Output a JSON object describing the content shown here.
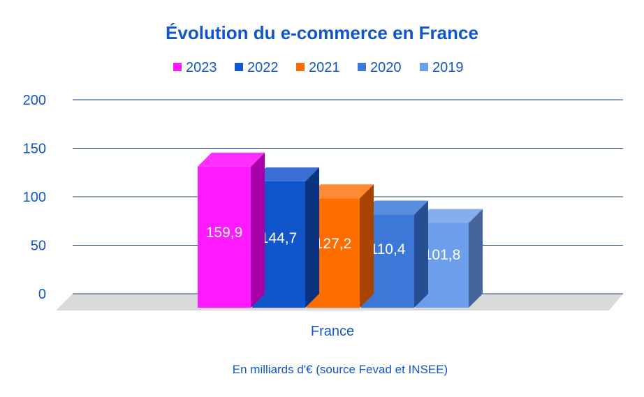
{
  "chart_data": {
    "type": "bar",
    "title": "Évolution du e-commerce en France",
    "categories": [
      "France"
    ],
    "series": [
      {
        "name": "2023",
        "values": [
          159.9
        ],
        "label": "159,9",
        "color": "#ff19ff",
        "top_color": "#ff2eff",
        "side_color": "#a800a8"
      },
      {
        "name": "2022",
        "values": [
          144.7
        ],
        "label": "144,7",
        "color": "#1155cc",
        "top_color": "#3a6fd6",
        "side_color": "#0a3480"
      },
      {
        "name": "2021",
        "values": [
          127.2
        ],
        "label": "127,2",
        "color": "#ff6d01",
        "top_color": "#ff8a33",
        "side_color": "#a84400"
      },
      {
        "name": "2020",
        "values": [
          110.4
        ],
        "label": "110,4",
        "color": "#3c78d8",
        "top_color": "#5a8fe0",
        "side_color": "#264f91"
      },
      {
        "name": "2019",
        "values": [
          101.8
        ],
        "label": "101,8",
        "color": "#6d9eeb",
        "top_color": "#85aef0",
        "side_color": "#46669a"
      }
    ],
    "yticks": [
      "0",
      "50",
      "100",
      "150",
      "200"
    ],
    "ylim": [
      0,
      200
    ],
    "grid": true,
    "legend_position": "top",
    "caption": "En milliards d'€ (source Fevad et INSEE)",
    "colors": {
      "title": "#1155cc",
      "text": "#1155cc",
      "gridline": "#1c4587",
      "floor": "#d9d9d9",
      "data_label": "#ffffff"
    }
  }
}
